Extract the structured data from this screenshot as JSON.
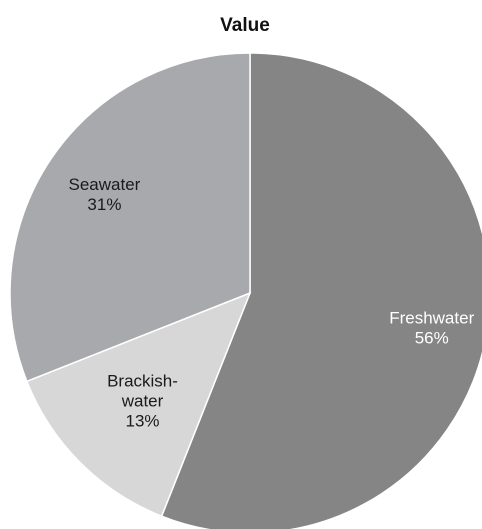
{
  "chart_data": {
    "type": "pie",
    "title": "Value",
    "slices": [
      {
        "name": "Freshwater",
        "value": 56,
        "value_label": "56%",
        "color": "#858585",
        "label_color": "#ffffff",
        "label_lines": [
          "Freshwater"
        ]
      },
      {
        "name": "Brackish-water",
        "value": 13,
        "value_label": "13%",
        "color": "#d7d7d7",
        "label_color": "#1a1a1a",
        "label_lines": [
          "Brackish-",
          "water"
        ]
      },
      {
        "name": "Seawater",
        "value": 31,
        "value_label": "31%",
        "color": "#a8a9ad",
        "label_color": "#1a1a1a",
        "label_lines": [
          "Seawater"
        ]
      }
    ],
    "start_angle": "12 o'clock",
    "direction": "clockwise",
    "legend": "none",
    "edge_color": "#ffffff"
  }
}
